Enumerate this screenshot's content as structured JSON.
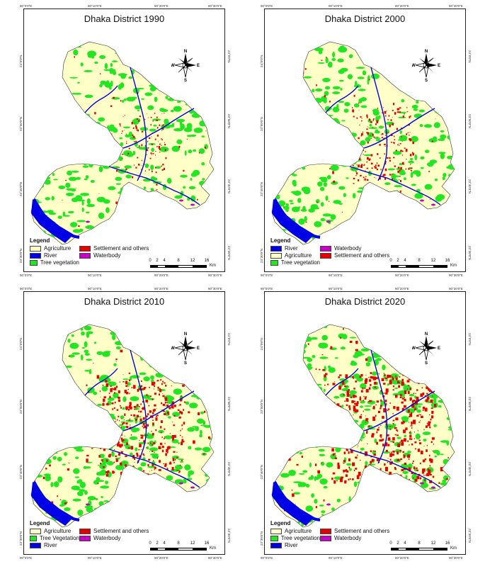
{
  "panels": [
    {
      "title": "Dhaka District 1990",
      "legend_title": "Legend",
      "legend": [
        {
          "label": "Agriculture",
          "color": "#ffffc8"
        },
        {
          "label": "Settlement and others",
          "color": "#e60000"
        },
        {
          "label": "River",
          "color": "#0000e6"
        },
        {
          "label": "Waterbody",
          "color": "#c800c8"
        },
        {
          "label": "Tree vegetation",
          "color": "#22e622"
        }
      ],
      "top_ticks": [
        "90°0'0\"E",
        "90°10'0\"E",
        "90°20'0\"E",
        "90°30'0\"E"
      ],
      "bottom_ticks": [
        "90°0'0\"E",
        "90°10'0\"E",
        "90°20'0\"E",
        "90°30'0\"E"
      ],
      "left_ticks": [
        "24°0'0\"N",
        "23°50'0\"N",
        "23°40'0\"N",
        "23°30'0\"N"
      ],
      "right_ticks": [
        "24°0'0\"N",
        "23°50'0\"N",
        "23°40'0\"N",
        "23°30'0\"N"
      ],
      "settlement_level": 0.08
    },
    {
      "title": "Dhaka District 2000",
      "legend_title": "Legend",
      "legend": [
        {
          "label": "River",
          "color": "#0000e6"
        },
        {
          "label": "Waterbody",
          "color": "#c800c8"
        },
        {
          "label": "Agriculture",
          "color": "#ffffc8"
        },
        {
          "label": "Settlement and others",
          "color": "#e60000"
        },
        {
          "label": "Tree vegetation",
          "color": "#22e622"
        }
      ],
      "top_ticks": [
        "90°0'0\"E",
        "90°10'0\"E",
        "90°20'0\"E",
        "90°30'0\"E"
      ],
      "bottom_ticks": [
        "90°0'0\"E",
        "90°10'0\"E",
        "90°20'0\"E",
        "90°30'0\"E"
      ],
      "left_ticks": [
        "24°0'0\"N",
        "23°50'0\"N",
        "23°40'0\"N",
        "23°30'0\"N"
      ],
      "right_ticks": [
        "24°0'0\"N",
        "23°50'0\"N",
        "23°40'0\"N",
        "23°30'0\"N"
      ],
      "settlement_level": 0.2
    },
    {
      "title": "Dhaka District 2010",
      "legend_title": "Legend",
      "legend": [
        {
          "label": "Agriculture",
          "color": "#ffffc8"
        },
        {
          "label": "Settlement and others",
          "color": "#e60000"
        },
        {
          "label": "Tree Vegetation",
          "color": "#22e622"
        },
        {
          "label": "Waterbody",
          "color": "#c800c8"
        },
        {
          "label": "River",
          "color": "#0000e6"
        }
      ],
      "top_ticks": [
        "90°0'0\"E",
        "90°10'0\"E",
        "90°20'0\"E",
        "90°30'0\"E"
      ],
      "bottom_ticks": [
        "90°0'0\"E",
        "90°10'0\"E",
        "90°20'0\"E",
        "90°30'0\"E"
      ],
      "left_ticks": [
        "24°0'0\"N",
        "23°50'0\"N",
        "23°40'0\"N",
        "23°30'0\"N"
      ],
      "right_ticks": [
        "24°0'0\"N",
        "23°50'0\"N",
        "23°40'0\"N",
        "23°30'0\"N"
      ],
      "settlement_level": 0.45
    },
    {
      "title": "Dhaka District 2020",
      "legend_title": "Legend",
      "legend": [
        {
          "label": "Agriculture",
          "color": "#ffffc8"
        },
        {
          "label": "Settlement and others",
          "color": "#e60000"
        },
        {
          "label": "Tree vegetation",
          "color": "#22e622"
        },
        {
          "label": "Waterbody",
          "color": "#c800c8"
        },
        {
          "label": "River",
          "color": "#0000e6"
        }
      ],
      "top_ticks": [
        "90°0'0\"E",
        "90°10'0\"E",
        "90°20'0\"E",
        "90°30'0\"E"
      ],
      "bottom_ticks": [
        "90°0'0\"E",
        "90°10'0\"E",
        "90°20'0\"E",
        "90°30'0\"E"
      ],
      "left_ticks": [
        "24°0'0\"N",
        "23°50'0\"N",
        "23°40'0\"N",
        "23°30'0\"N"
      ],
      "right_ticks": [
        "24°0'0\"N",
        "23°50'0\"N",
        "23°40'0\"N",
        "23°30'0\"N"
      ],
      "settlement_level": 0.6
    }
  ],
  "compass": {
    "n": "N",
    "s": "S",
    "e": "E",
    "w": "W"
  },
  "scale": {
    "labels": [
      "0",
      "2",
      "4",
      "8",
      "12",
      "16"
    ],
    "unit": "Km"
  },
  "colors": {
    "agriculture": "#ffffc8",
    "tree": "#22e622",
    "settlement": "#e60000",
    "river": "#0000e6",
    "waterbody": "#c800c8"
  }
}
